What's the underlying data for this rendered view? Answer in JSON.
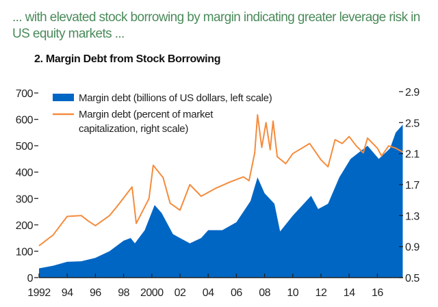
{
  "header": {
    "headline": "... with elevated stock borrowing by margin indicating greater leverage risk in US equity markets ...",
    "chart_title": "2. Margin Debt from Stock Borrowing"
  },
  "chart_data": {
    "type": "area+line",
    "title": "2. Margin Debt from Stock Borrowing",
    "x_ticks": [
      "1992",
      "94",
      "96",
      "98",
      "2000",
      "02",
      "04",
      "06",
      "08",
      "10",
      "12",
      "14",
      "16"
    ],
    "left_axis": {
      "ylim": [
        0,
        700
      ],
      "ticks": [
        "0",
        "100",
        "200",
        "300",
        "400",
        "500",
        "600",
        "700"
      ]
    },
    "right_axis": {
      "ylim": [
        0.5,
        2.9
      ],
      "ticks": [
        "0.5",
        "0.9",
        "1.3",
        "1.7",
        "2.1",
        "2.5",
        "2.9"
      ]
    },
    "legend_placement": "top-left",
    "grid": false,
    "series": [
      {
        "name": "Margin debt (billions of US dollars, left scale)",
        "type": "area",
        "axis": "left",
        "color": "#0066c4",
        "x": [
          1992,
          1993,
          1994,
          1995,
          1996,
          1997,
          1998,
          1998.5,
          1998.8,
          1999.5,
          2000.2,
          2000.7,
          2001.5,
          2002,
          2002.7,
          2003.5,
          2004,
          2005,
          2006,
          2007,
          2007.5,
          2008,
          2008.7,
          2009.1,
          2010,
          2011.3,
          2011.8,
          2012.5,
          2013.3,
          2014.1,
          2015.3,
          2016.1,
          2016.9,
          2017.3,
          2017.8
        ],
        "y": [
          35,
          45,
          60,
          62,
          75,
          100,
          140,
          150,
          130,
          180,
          275,
          245,
          165,
          150,
          130,
          150,
          180,
          180,
          210,
          290,
          380,
          320,
          280,
          175,
          235,
          310,
          260,
          280,
          380,
          450,
          500,
          450,
          490,
          550,
          580
        ]
      },
      {
        "name": "Margin debt (percent of market capitalization, right scale)",
        "type": "line",
        "axis": "right",
        "color": "#f58b3c",
        "x": [
          1992,
          1993,
          1994,
          1995,
          1995.5,
          1996,
          1997,
          1997.5,
          1998.6,
          1998.9,
          1999.8,
          2000.1,
          2000.8,
          2001.3,
          2002,
          2002.7,
          2003.5,
          2004.5,
          2005.5,
          2006.5,
          2006.9,
          2007.3,
          2007.5,
          2007.8,
          2008.1,
          2008.4,
          2008.6,
          2008.9,
          2009.5,
          2010,
          2011.2,
          2012,
          2012.5,
          2013,
          2013.5,
          2014,
          2014.5,
          2015,
          2015.3,
          2016,
          2016.3,
          2016.8,
          2017.3,
          2017.8
        ],
        "y": [
          0.91,
          1.05,
          1.29,
          1.3,
          1.23,
          1.17,
          1.3,
          1.41,
          1.67,
          1.2,
          1.52,
          1.95,
          1.79,
          1.46,
          1.37,
          1.7,
          1.55,
          1.65,
          1.73,
          1.8,
          1.75,
          2.11,
          2.6,
          2.18,
          2.5,
          2.15,
          2.52,
          2.06,
          1.97,
          2.1,
          2.23,
          2.02,
          1.93,
          2.28,
          2.23,
          2.32,
          2.2,
          2.11,
          2.3,
          2.17,
          2.07,
          2.2,
          2.17,
          2.12
        ]
      }
    ]
  }
}
